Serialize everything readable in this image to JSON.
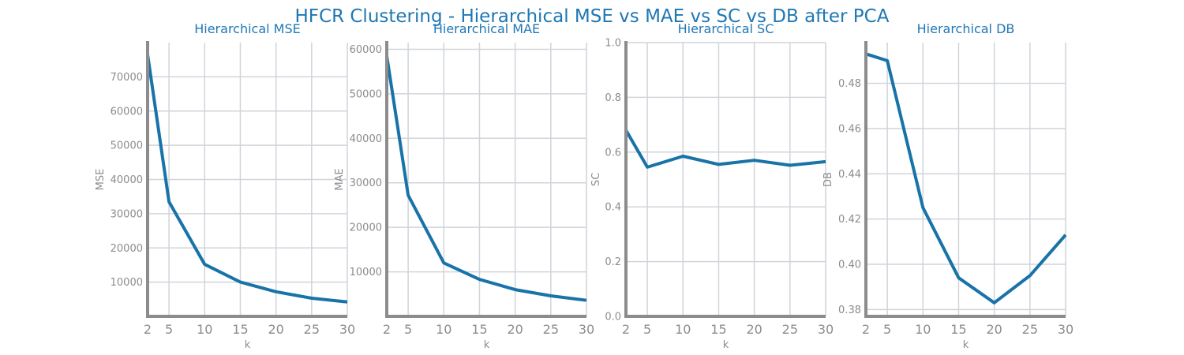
{
  "figure": {
    "title": "HFCR Clustering - Hierarchical MSE vs MAE vs SC vs DB after PCA"
  },
  "colors": {
    "title": "#1f77b4",
    "line": "#1873a8",
    "grid": "#d0d4da",
    "axis": "#8c8c8c"
  },
  "chart_data": [
    {
      "type": "line",
      "title": "Hierarchical MSE",
      "xlabel": "k",
      "ylabel": "MSE",
      "x": [
        2,
        5,
        10,
        15,
        20,
        25,
        30
      ],
      "values": [
        76500,
        33500,
        15200,
        10000,
        7200,
        5300,
        4200
      ],
      "xticks": [
        2,
        5,
        10,
        15,
        20,
        25,
        30
      ],
      "yticks": [
        10000,
        20000,
        30000,
        40000,
        50000,
        60000,
        70000
      ],
      "xlim": [
        2,
        30
      ],
      "ylim": [
        0,
        80000
      ],
      "grid": true
    },
    {
      "type": "line",
      "title": "Hierarchical MAE",
      "xlabel": "k",
      "ylabel": "MAE",
      "x": [
        2,
        5,
        10,
        15,
        20,
        25,
        30
      ],
      "values": [
        58500,
        27200,
        12000,
        8300,
        6000,
        4600,
        3600
      ],
      "xticks": [
        2,
        5,
        10,
        15,
        20,
        25,
        30
      ],
      "yticks": [
        10000,
        20000,
        30000,
        40000,
        50000,
        60000
      ],
      "xlim": [
        2,
        30
      ],
      "ylim": [
        0,
        61500
      ],
      "grid": true
    },
    {
      "type": "line",
      "title": "Hierarchical SC",
      "xlabel": "k",
      "ylabel": "SC",
      "x": [
        2,
        5,
        10,
        15,
        20,
        25,
        30
      ],
      "values": [
        0.68,
        0.545,
        0.585,
        0.555,
        0.57,
        0.552,
        0.565
      ],
      "xticks": [
        2,
        5,
        10,
        15,
        20,
        25,
        30
      ],
      "yticks": [
        "0.0",
        "0.2",
        "0.4",
        "0.6",
        "0.8",
        "1.0"
      ],
      "xlim": [
        2,
        30
      ],
      "ylim": [
        0,
        1
      ],
      "grid": true
    },
    {
      "type": "line",
      "title": "Hierarchical DB",
      "xlabel": "k",
      "ylabel": "DB",
      "x": [
        2,
        5,
        10,
        15,
        20,
        25,
        30
      ],
      "values": [
        0.493,
        0.49,
        0.425,
        0.394,
        0.383,
        0.395,
        0.413
      ],
      "xticks": [
        2,
        5,
        10,
        15,
        20,
        25,
        30
      ],
      "yticks": [
        "0.38",
        "0.40",
        "0.42",
        "0.44",
        "0.46",
        "0.48"
      ],
      "xlim": [
        2,
        30
      ],
      "ylim": [
        0.377,
        0.498
      ],
      "grid": true
    }
  ]
}
